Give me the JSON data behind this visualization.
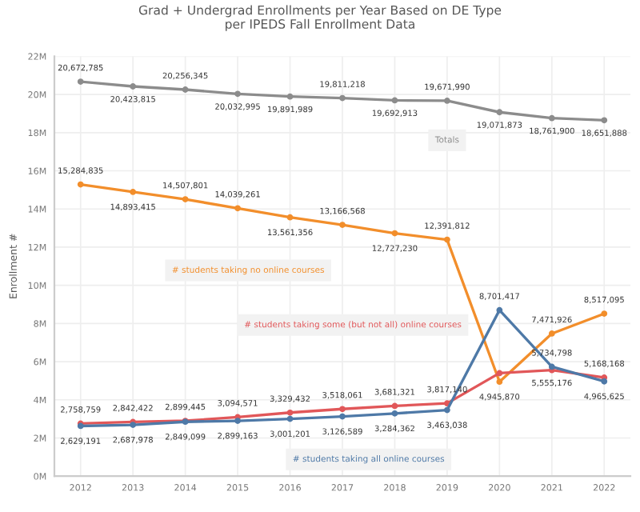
{
  "chart_data": {
    "type": "line",
    "title": "Grad + Undergrad Enrollments per Year Based on DE Type\nper IPEDS Fall Enrollment Data",
    "ylabel": "Enrollment #",
    "categories": [
      "2012",
      "2013",
      "2014",
      "2015",
      "2016",
      "2017",
      "2018",
      "2019",
      "2020",
      "2021",
      "2022"
    ],
    "series": [
      {
        "name": "Totals",
        "color": "#8c8c8c",
        "values": [
          20672785,
          20423815,
          20256345,
          20032995,
          19891989,
          19811218,
          19692913,
          19671990,
          19071873,
          18761900,
          18651888
        ],
        "value_labels": [
          "20,672,785",
          "20,423,815",
          "20,256,345",
          "20,032,995",
          "19,891,989",
          "19,811,218",
          "19,692,913",
          "19,671,990",
          "19,071,873",
          "18,761,900",
          "18,651,888"
        ]
      },
      {
        "name": "# students taking no online courses",
        "color": "#f28e2b",
        "values": [
          15284835,
          14893415,
          14507801,
          14039261,
          13561356,
          13166568,
          12727230,
          12391812,
          4945870,
          7471926,
          8517095
        ],
        "value_labels": [
          "15,284,835",
          "14,893,415",
          "14,507,801",
          "14,039,261",
          "13,561,356",
          "13,166,568",
          "12,727,230",
          "12,391,812",
          "4,945,870",
          "7,471,926",
          "8,517,095"
        ]
      },
      {
        "name": "# students taking some (but not all) online courses",
        "color": "#e15759",
        "values": [
          2758759,
          2842422,
          2899445,
          3094571,
          3329432,
          3518061,
          3681321,
          3817140,
          5400000,
          5555176,
          5168168
        ],
        "value_labels": [
          "2,758,759",
          "2,842,422",
          "2,899,445",
          "3,094,571",
          "3,329,432",
          "3,518,061",
          "3,681,321",
          "3,817,140",
          null,
          "5,555,176",
          "5,168,168"
        ]
      },
      {
        "name": "# students taking all online courses",
        "color": "#4e79a7",
        "values": [
          2629191,
          2687978,
          2849099,
          2899163,
          3001201,
          3126589,
          3284362,
          3463038,
          8701417,
          5734798,
          4965625
        ],
        "value_labels": [
          "2,629,191",
          "2,687,978",
          "2,849,099",
          "2,899,163",
          "3,001,201",
          "3,126,589",
          "3,284,362",
          "3,463,038",
          "8,701,417",
          "5,734,798",
          "4,965,625"
        ]
      }
    ],
    "ylim": [
      0,
      22000000
    ],
    "yticks": [
      {
        "value": 0,
        "label": "0M"
      },
      {
        "value": 2000000,
        "label": "2M"
      },
      {
        "value": 4000000,
        "label": "4M"
      },
      {
        "value": 6000000,
        "label": "6M"
      },
      {
        "value": 8000000,
        "label": "8M"
      },
      {
        "value": 10000000,
        "label": "10M"
      },
      {
        "value": 12000000,
        "label": "12M"
      },
      {
        "value": 14000000,
        "label": "14M"
      },
      {
        "value": 16000000,
        "label": "16M"
      },
      {
        "value": 18000000,
        "label": "18M"
      },
      {
        "value": 20000000,
        "label": "20M"
      },
      {
        "value": 22000000,
        "label": "22M"
      }
    ],
    "grid": true,
    "marker": "circle",
    "line_style": "solid",
    "legend": false
  }
}
